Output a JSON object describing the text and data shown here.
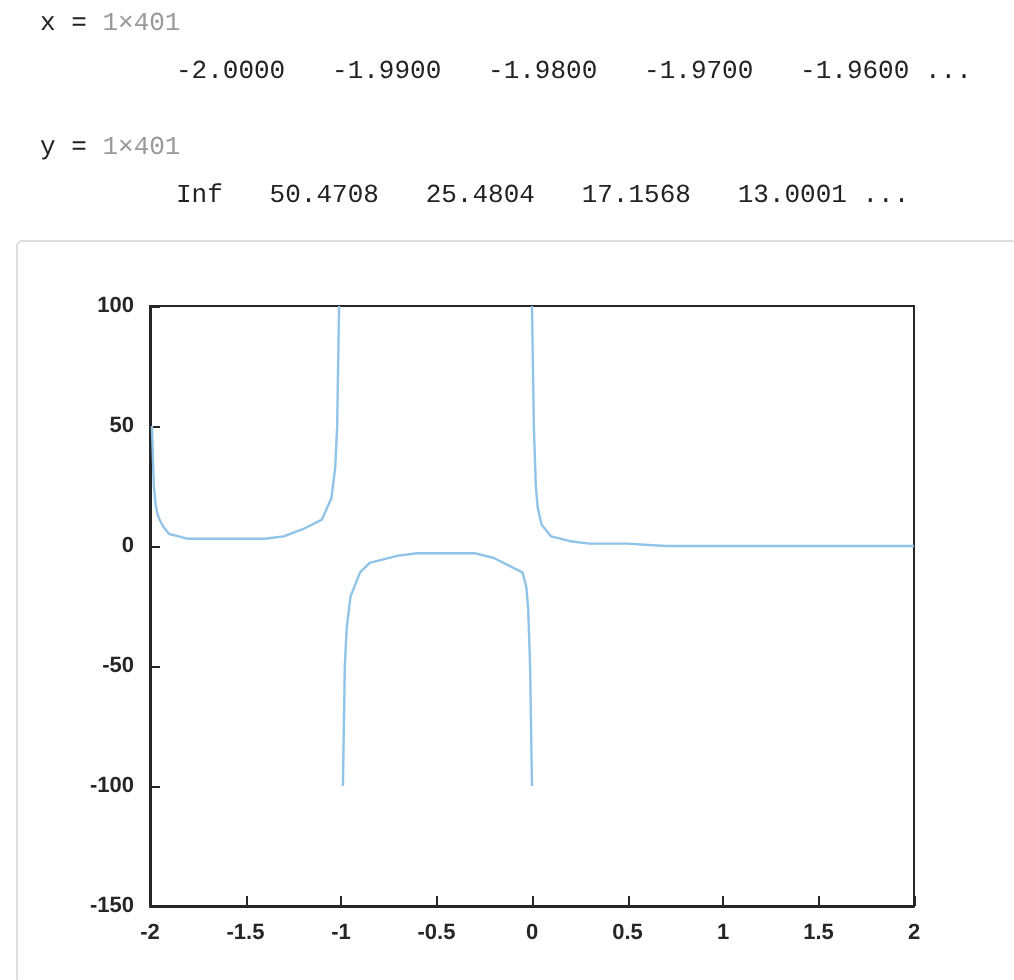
{
  "chart_data": {
    "type": "line",
    "annotations": [
      "x = 1×401",
      "-2.0000   -1.9900   -1.9800   -1.9700   -1.9600 ...",
      "y = 1×401",
      "Inf   50.4708   25.4804   17.1568   13.0001 ..."
    ],
    "xlim": [
      -2,
      2
    ],
    "xticks": [
      -2,
      -1.5,
      -1,
      -0.5,
      0,
      0.5,
      1,
      1.5,
      2
    ],
    "ylim": [
      -150,
      100
    ],
    "yticks": [
      -150,
      -100,
      -50,
      0,
      50,
      100
    ],
    "marker": "none",
    "series": [
      {
        "color": "#8fc3e8",
        "x": [
          -1.99,
          -1.98,
          -1.97,
          -1.96,
          -1.95,
          -1.93,
          -1.9,
          -1.85,
          -1.8,
          -1.7,
          -1.6,
          -1.5,
          -1.4,
          -1.3,
          -1.2,
          -1.1,
          -1.05,
          -1.03,
          -1.02,
          -1.01
        ],
        "values": [
          50,
          25,
          17,
          13,
          11,
          8,
          5,
          4,
          3,
          3,
          3,
          3,
          3,
          4,
          7,
          11,
          20,
          33,
          50,
          100
        ]
      },
      {
        "color": "#8fc3e8",
        "x": [
          -0.99,
          -0.98,
          -0.97,
          -0.95,
          -0.9,
          -0.85,
          -0.8,
          -0.7,
          -0.6,
          -0.5,
          -0.4,
          -0.3,
          -0.2,
          -0.1,
          -0.05,
          -0.03,
          -0.02,
          -0.01,
          0
        ],
        "values": [
          -100,
          -50,
          -34,
          -21,
          -11,
          -7,
          -6,
          -4,
          -3,
          -3,
          -3,
          -3,
          -5,
          -9,
          -11,
          -17,
          -26,
          -50,
          -100
        ]
      },
      {
        "color": "#8fc3e8",
        "x": [
          0,
          0.01,
          0.02,
          0.03,
          0.05,
          0.1,
          0.2,
          0.3,
          0.5,
          0.7,
          1,
          1.5,
          2
        ],
        "values": [
          100,
          49,
          25,
          16,
          9,
          4,
          2,
          1,
          1,
          0,
          0,
          0,
          0
        ]
      }
    ]
  }
}
